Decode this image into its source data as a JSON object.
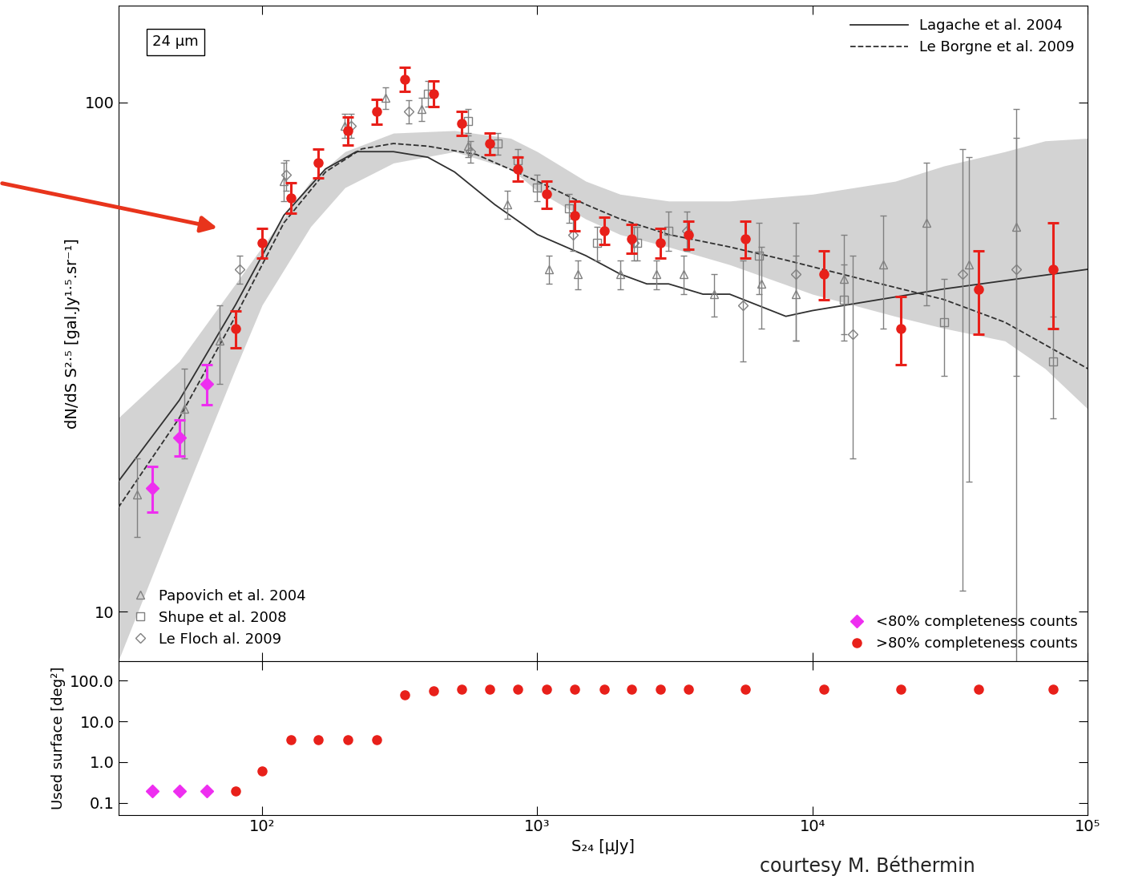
{
  "chart_data": {
    "type": "scatter",
    "log": true,
    "xlabel": "S₂₄ [μJy]",
    "ylabel": "dN/dS S²·⁵ [gal.Jy¹·⁵.sr⁻¹]",
    "xlim": [
      30,
      100000
    ],
    "ylim": [
      8,
      155
    ],
    "xticks": [
      {
        "value": 100,
        "label": "10²"
      },
      {
        "value": 1000,
        "label": "10³"
      },
      {
        "value": 10000,
        "label": "10⁴"
      },
      {
        "value": 100000,
        "label": "10⁵"
      }
    ],
    "yticks": [
      10,
      100
    ],
    "annotations": [
      "24 μm",
      "courtesy M. Béthermin"
    ],
    "band": {
      "color": "#d3d3d3",
      "x": [
        30,
        50,
        80,
        100,
        150,
        200,
        300,
        500,
        800,
        1000,
        1500,
        2000,
        3000,
        5000,
        10000,
        20000,
        30000,
        50000,
        70000,
        100000
      ],
      "low": [
        8,
        16,
        30,
        40,
        57,
        68,
        76,
        80,
        74,
        67,
        59,
        55,
        52,
        48,
        42,
        38,
        36,
        34,
        30,
        25
      ],
      "high": [
        24,
        31,
        44,
        52,
        70,
        80,
        87,
        88,
        85,
        80,
        70,
        66,
        64,
        64,
        66,
        70,
        75,
        80,
        84,
        85
      ]
    },
    "models": {
      "legend": "upper right",
      "series": [
        {
          "name": "Lagache et al. 2004",
          "color": "#303030",
          "line_style": "solid",
          "x": [
            30,
            50,
            80,
            120,
            170,
            220,
            300,
            400,
            500,
            700,
            1000,
            1500,
            2000,
            2500,
            3000,
            4000,
            5000,
            8000,
            10000,
            30000,
            100000
          ],
          "values": [
            18,
            26,
            40,
            60,
            74,
            80,
            80,
            78,
            73,
            63,
            55,
            50,
            46,
            44,
            44,
            42,
            42,
            38,
            39,
            43,
            47
          ]
        },
        {
          "name": "Le Borgne et al. 2009",
          "color": "#303030",
          "line_style": "dashed",
          "x": [
            30,
            50,
            80,
            120,
            170,
            230,
            300,
            400,
            600,
            1000,
            1500,
            2000,
            3000,
            5000,
            8000,
            15000,
            30000,
            50000,
            100000
          ],
          "values": [
            16,
            24,
            38,
            58,
            73,
            81,
            83,
            82,
            79,
            70,
            63,
            59,
            55,
            52,
            49,
            45,
            41,
            37,
            30
          ]
        }
      ]
    },
    "literature": {
      "legend": "lower left",
      "series": [
        {
          "name": "Papovich et al. 2004",
          "color": "#808080",
          "marker": "triangle",
          "x": [
            35,
            52,
            70,
            120,
            200,
            280,
            380,
            560,
            780,
            1100,
            1400,
            2000,
            2700,
            3400,
            4400,
            6500,
            8700,
            13000,
            18000,
            26000,
            37000,
            55000
          ],
          "values": [
            17,
            25,
            34,
            70,
            90,
            102,
            97,
            82,
            63,
            47,
            46,
            46,
            46,
            46,
            42,
            44,
            42,
            45,
            48,
            58,
            48,
            57
          ],
          "err": [
            3,
            5,
            6,
            6,
            5,
            5,
            5,
            4,
            4,
            3,
            3,
            3,
            3,
            4,
            4,
            8,
            8,
            10,
            12,
            18,
            30,
            28
          ]
        },
        {
          "name": "Shupe et al. 2008",
          "color": "#808080",
          "marker": "square",
          "x": [
            400,
            560,
            720,
            850,
            1000,
            1300,
            1650,
            2300,
            3000,
            6400,
            13000,
            30000,
            75000
          ],
          "values": [
            104,
            92,
            83,
            77,
            68,
            62,
            53,
            53,
            56,
            50,
            41,
            37,
            31
          ],
          "err": [
            6,
            5,
            4,
            4,
            4,
            4,
            4,
            4,
            5,
            8,
            7,
            8,
            7
          ]
        },
        {
          "name": "Le Floch al. 2009",
          "color": "#808080",
          "marker": "diamond",
          "x": [
            83,
            122,
            210,
            340,
            570,
            1350,
            2250,
            3500,
            5600,
            8700,
            14000,
            35000,
            55000
          ],
          "values": [
            47,
            72,
            90,
            96,
            80,
            55,
            53,
            56,
            40,
            46,
            35,
            46,
            47
          ],
          "err": [
            3,
            5,
            5,
            5,
            4,
            4,
            4,
            5,
            9,
            12,
            15,
            35,
            50
          ]
        }
      ]
    },
    "counts": {
      "legend": "lower right",
      "series": [
        {
          "name": "<80% completeness counts",
          "color": "#ee2ef0",
          "marker": "diamond",
          "x": [
            40,
            50,
            63
          ],
          "values": [
            17.5,
            22,
            28
          ],
          "err": [
            1.8,
            1.8,
            2.5
          ],
          "surface": [
            0.2,
            0.2,
            0.2
          ]
        },
        {
          "name": ">80% completeness counts",
          "color": "#e8201a",
          "marker": "circle",
          "x": [
            80,
            100,
            127,
            160,
            205,
            260,
            330,
            420,
            530,
            670,
            850,
            1080,
            1370,
            1750,
            2200,
            2800,
            3550,
            5700,
            11000,
            21000,
            40000,
            75000
          ],
          "values": [
            36,
            53,
            65,
            76,
            88,
            96,
            111,
            104,
            91,
            83,
            74,
            66,
            60,
            56,
            54,
            53,
            55,
            54,
            46,
            36,
            43,
            47
          ],
          "err": [
            3,
            3.5,
            4.5,
            5,
            5.5,
            5.5,
            6,
            6,
            5,
            4,
            4,
            4,
            4,
            3.5,
            3.5,
            3.5,
            3.5,
            4.5,
            5,
            5.5,
            8,
            11
          ],
          "surface": [
            0.2,
            0.6,
            3.5,
            3.5,
            3.5,
            3.5,
            45,
            55,
            62,
            62,
            62,
            62,
            62,
            62,
            62,
            62,
            62,
            62,
            62,
            62,
            62,
            62
          ]
        }
      ]
    },
    "surface_panel": {
      "ylabel": "Used surface [deg²]",
      "ylim": [
        0.05,
        300
      ],
      "yticks": [
        {
          "value": 0.1,
          "label": "0.1"
        },
        {
          "value": 1,
          "label": "1.0"
        },
        {
          "value": 10,
          "label": "10.0"
        },
        {
          "value": 100,
          "label": "100.0"
        }
      ]
    }
  }
}
